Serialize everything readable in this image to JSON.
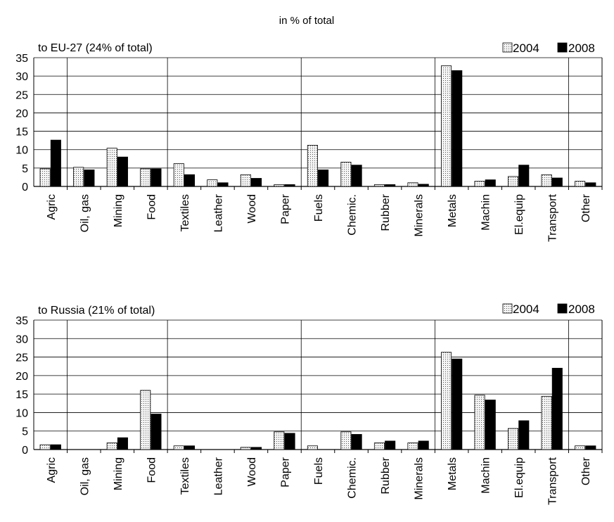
{
  "page_title": "in % of total",
  "chart_data": [
    {
      "type": "bar",
      "title": "to EU-27 (24% of total)",
      "categories": [
        "Agric",
        "Oil, gas",
        "Mining",
        "Food",
        "Textiles",
        "Leather",
        "Wood",
        "Paper",
        "Fuels",
        "Chemic.",
        "Rubber",
        "Minerals",
        "Metals",
        "Machin",
        "El.equip",
        "Transport",
        "Other"
      ],
      "series": [
        {
          "name": "2004",
          "values": [
            4.8,
            5.2,
            10.4,
            4.8,
            6.2,
            1.8,
            3.2,
            0.5,
            11.2,
            6.6,
            0.5,
            1.0,
            32.8,
            1.4,
            2.7,
            3.2,
            1.4
          ],
          "color": "#f2f2f2",
          "pattern": "dotted"
        },
        {
          "name": "2008",
          "values": [
            12.6,
            4.5,
            8.0,
            4.8,
            3.2,
            1.0,
            2.2,
            0.5,
            4.5,
            5.8,
            0.5,
            0.6,
            31.5,
            1.8,
            5.8,
            2.3,
            1.0
          ],
          "color": "#000000",
          "pattern": "solid"
        }
      ],
      "ylim": [
        0,
        35
      ],
      "yticks": [
        0,
        5,
        10,
        15,
        20,
        25,
        30,
        35
      ],
      "group_dividers_after": [
        "Agric",
        "Food",
        "Paper",
        "Minerals",
        "Transport"
      ],
      "legend_position": "top-right",
      "grid": true
    },
    {
      "type": "bar",
      "title": "to Russia (21% of total)",
      "categories": [
        "Agric",
        "Oil, gas",
        "Mining",
        "Food",
        "Textiles",
        "Leather",
        "Wood",
        "Paper",
        "Fuels",
        "Chemic.",
        "Rubber",
        "Minerals",
        "Metals",
        "Machin",
        "El.equip",
        "Transport",
        "Other"
      ],
      "series": [
        {
          "name": "2004",
          "values": [
            1.3,
            0.0,
            1.8,
            16.0,
            1.0,
            0.0,
            0.6,
            4.8,
            1.0,
            4.8,
            1.8,
            1.8,
            26.3,
            14.7,
            5.7,
            14.4,
            1.0
          ],
          "color": "#f2f2f2",
          "pattern": "dotted"
        },
        {
          "name": "2008",
          "values": [
            1.3,
            0.0,
            3.2,
            9.6,
            1.0,
            0.0,
            0.6,
            4.4,
            0.0,
            4.1,
            2.3,
            2.3,
            24.5,
            13.4,
            7.8,
            22.0,
            1.0
          ],
          "color": "#000000",
          "pattern": "solid"
        }
      ],
      "ylim": [
        0,
        35
      ],
      "yticks": [
        0,
        5,
        10,
        15,
        20,
        25,
        30,
        35
      ],
      "group_dividers_after": [
        "Agric",
        "Food",
        "Paper",
        "Minerals",
        "Transport"
      ],
      "legend_position": "top-right",
      "grid": true
    }
  ]
}
